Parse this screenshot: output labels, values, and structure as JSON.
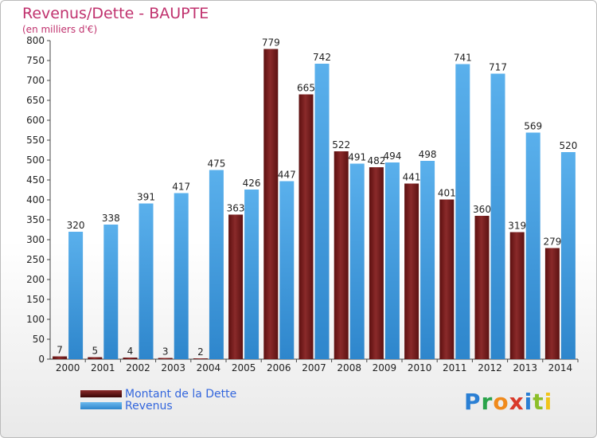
{
  "title": "Revenus/Dette - BAUPTE",
  "subtitle": "(en milliers d'€)",
  "logo": {
    "text": "Proxiti",
    "colors": [
      "#2a7fd4",
      "#2aa34a",
      "#f08a1c",
      "#d93a2b",
      "#2a7fd4",
      "#8cbf2a",
      "#f0c419"
    ]
  },
  "colors": {
    "dette": "#7a1a1a",
    "revenus": "#4aa6e8",
    "title": "#c0326e",
    "legend_text": "#3366dd"
  },
  "chart_data": {
    "type": "bar",
    "title": "Revenus/Dette - BAUPTE",
    "subtitle": "(en milliers d'€)",
    "categories": [
      "2000",
      "2001",
      "2002",
      "2003",
      "2004",
      "2005",
      "2006",
      "2007",
      "2008",
      "2009",
      "2010",
      "2011",
      "2012",
      "2013",
      "2014"
    ],
    "series": [
      {
        "name": "Montant de la Dette",
        "values": [
          7,
          5,
          4,
          3,
          2,
          363,
          779,
          665,
          522,
          482,
          441,
          401,
          360,
          319,
          279
        ]
      },
      {
        "name": "Revenus",
        "values": [
          320,
          338,
          391,
          417,
          475,
          426,
          447,
          742,
          491,
          494,
          498,
          741,
          717,
          569,
          520
        ]
      }
    ],
    "ylim": [
      0,
      800
    ],
    "yticks": [
      0,
      50,
      100,
      150,
      200,
      250,
      300,
      350,
      400,
      450,
      500,
      550,
      600,
      650,
      700,
      750,
      800
    ],
    "grid": false,
    "legend": "bottom-left"
  }
}
